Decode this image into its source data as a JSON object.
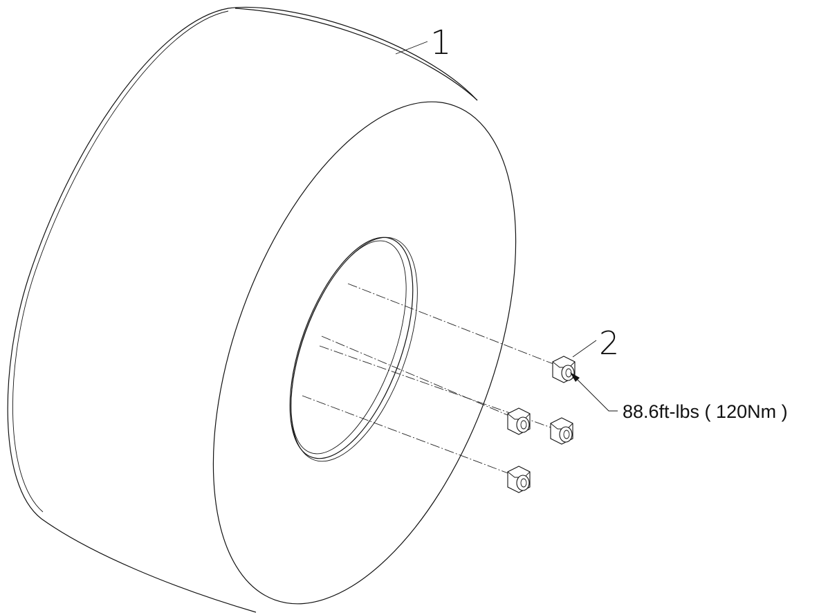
{
  "diagram": {
    "part_labels": [
      "1",
      "2"
    ],
    "torque_spec": "88.6ft-lbs ( 120Nm )"
  }
}
